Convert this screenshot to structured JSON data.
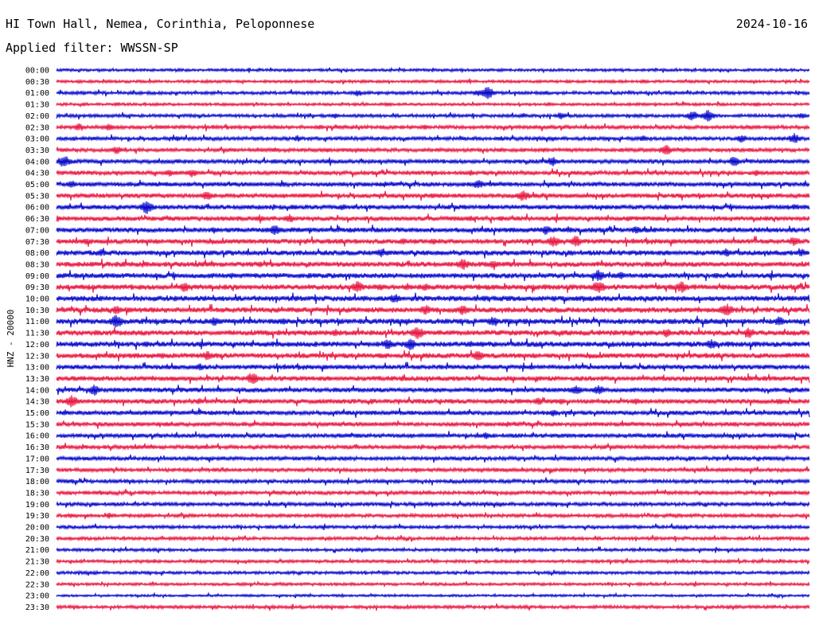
{
  "header": {
    "station": "HI Town Hall, Nemea, Corinthia, Peloponnese",
    "date": "2024-10-16",
    "filter_text": "Applied filter: WWSSN-SP"
  },
  "channel_label": "HNZ - 20000",
  "colors": {
    "trace_a": "#0000cc",
    "trace_b": "#e8103c",
    "text": "#000000",
    "background": "#ffffff"
  },
  "chart_data": {
    "type": "line",
    "title": "",
    "ylabel": "HNZ - 20000",
    "xlabel": "",
    "grid": false,
    "legend": "none",
    "lines": [
      {
        "label": "00:00",
        "color": "trace_a",
        "level": 0.3,
        "bursts": [
          [
            0.03,
            0.15
          ],
          [
            0.31,
            0.2
          ],
          [
            0.59,
            0.25
          ],
          [
            0.78,
            0.2
          ]
        ]
      },
      {
        "label": "00:30",
        "color": "trace_b",
        "level": 0.3,
        "bursts": [
          [
            0.03,
            0.3
          ],
          [
            0.2,
            0.25
          ],
          [
            0.51,
            0.25
          ],
          [
            0.68,
            0.3
          ],
          [
            0.74,
            0.25
          ],
          [
            0.78,
            0.35
          ]
        ]
      },
      {
        "label": "01:00",
        "color": "trace_a",
        "level": 0.4,
        "bursts": [
          [
            0.1,
            0.3
          ],
          [
            0.4,
            0.5
          ],
          [
            0.56,
            0.5
          ],
          [
            0.572,
            1.0
          ],
          [
            0.65,
            0.3
          ]
        ]
      },
      {
        "label": "01:30",
        "color": "trace_b",
        "level": 0.3,
        "bursts": [
          [
            0.08,
            0.35
          ],
          [
            0.44,
            0.4
          ],
          [
            0.93,
            0.35
          ]
        ]
      },
      {
        "label": "02:00",
        "color": "trace_a",
        "level": 0.4,
        "bursts": [
          [
            0.37,
            0.4
          ],
          [
            0.62,
            0.4
          ],
          [
            0.67,
            0.6
          ],
          [
            0.845,
            0.8
          ],
          [
            0.865,
            0.9
          ],
          [
            0.99,
            0.5
          ]
        ]
      },
      {
        "label": "02:30",
        "color": "trace_b",
        "level": 0.5,
        "bursts": [
          [
            0.03,
            0.6
          ],
          [
            0.07,
            0.6
          ],
          [
            0.14,
            0.35
          ],
          [
            0.35,
            0.4
          ],
          [
            0.49,
            0.4
          ]
        ]
      },
      {
        "label": "03:00",
        "color": "trace_a",
        "level": 0.5,
        "bursts": [
          [
            0.16,
            0.4
          ],
          [
            0.32,
            0.5
          ],
          [
            0.59,
            0.4
          ],
          [
            0.78,
            0.5
          ],
          [
            0.91,
            0.6
          ],
          [
            0.98,
            0.8
          ]
        ]
      },
      {
        "label": "03:30",
        "color": "trace_b",
        "level": 0.5,
        "bursts": [
          [
            0.08,
            0.65
          ],
          [
            0.29,
            0.4
          ],
          [
            0.36,
            0.4
          ],
          [
            0.59,
            0.4
          ],
          [
            0.81,
            0.8
          ]
        ]
      },
      {
        "label": "04:00",
        "color": "trace_a",
        "level": 0.6,
        "bursts": [
          [
            0.01,
            1.0
          ],
          [
            0.66,
            0.7
          ],
          [
            0.9,
            0.8
          ]
        ]
      },
      {
        "label": "04:30",
        "color": "trace_b",
        "level": 0.6,
        "bursts": [
          [
            0.15,
            0.55
          ],
          [
            0.18,
            0.7
          ],
          [
            0.55,
            0.45
          ],
          [
            0.93,
            0.45
          ]
        ]
      },
      {
        "label": "05:00",
        "color": "trace_a",
        "level": 0.65,
        "bursts": [
          [
            0.02,
            0.6
          ],
          [
            0.3,
            0.5
          ],
          [
            0.56,
            0.75
          ]
        ]
      },
      {
        "label": "05:30",
        "color": "trace_b",
        "level": 0.65,
        "bursts": [
          [
            0.2,
            0.75
          ],
          [
            0.5,
            0.45
          ],
          [
            0.62,
            0.9
          ]
        ]
      },
      {
        "label": "06:00",
        "color": "trace_a",
        "level": 0.7,
        "bursts": [
          [
            0.12,
            1.0
          ],
          [
            0.38,
            0.5
          ],
          [
            0.81,
            0.45
          ],
          [
            0.98,
            0.5
          ]
        ]
      },
      {
        "label": "06:30",
        "color": "trace_b",
        "level": 0.7,
        "bursts": [
          [
            0.0,
            0.6
          ],
          [
            0.27,
            0.6
          ],
          [
            0.31,
            0.7
          ],
          [
            0.55,
            0.45
          ],
          [
            0.76,
            0.45
          ]
        ]
      },
      {
        "label": "07:00",
        "color": "trace_a",
        "level": 0.75,
        "bursts": [
          [
            0.29,
            0.85
          ],
          [
            0.65,
            0.75
          ],
          [
            0.68,
            0.55
          ],
          [
            0.77,
            0.6
          ]
        ]
      },
      {
        "label": "07:30",
        "color": "trace_b",
        "level": 0.75,
        "bursts": [
          [
            0.04,
            0.5
          ],
          [
            0.46,
            0.55
          ],
          [
            0.5,
            0.5
          ],
          [
            0.66,
            0.9
          ],
          [
            0.69,
            0.9
          ],
          [
            0.98,
            0.8
          ]
        ]
      },
      {
        "label": "08:00",
        "color": "trace_a",
        "level": 0.8,
        "bursts": [
          [
            0.06,
            0.6
          ],
          [
            0.43,
            0.7
          ],
          [
            0.89,
            0.7
          ],
          [
            0.99,
            0.6
          ]
        ]
      },
      {
        "label": "08:30",
        "color": "trace_b",
        "level": 0.8,
        "bursts": [
          [
            0.27,
            0.45
          ],
          [
            0.54,
            0.9
          ],
          [
            0.58,
            0.6
          ]
        ]
      },
      {
        "label": "09:00",
        "color": "trace_a",
        "level": 0.8,
        "bursts": [
          [
            0.72,
            0.9
          ],
          [
            0.75,
            0.6
          ]
        ]
      },
      {
        "label": "09:30",
        "color": "trace_b",
        "level": 0.85,
        "bursts": [
          [
            0.17,
            0.8
          ],
          [
            0.4,
            0.9
          ],
          [
            0.43,
            0.6
          ],
          [
            0.49,
            0.6
          ],
          [
            0.72,
            1.0
          ],
          [
            0.83,
            0.9
          ]
        ]
      },
      {
        "label": "10:00",
        "color": "trace_a",
        "level": 0.85,
        "bursts": [
          [
            0.45,
            0.8
          ],
          [
            0.6,
            0.45
          ],
          [
            0.72,
            0.5
          ]
        ]
      },
      {
        "label": "10:30",
        "color": "trace_b",
        "level": 0.85,
        "bursts": [
          [
            0.08,
            0.7
          ],
          [
            0.49,
            0.8
          ],
          [
            0.54,
            0.85
          ],
          [
            0.89,
            1.0
          ]
        ]
      },
      {
        "label": "11:00",
        "color": "trace_a",
        "level": 0.85,
        "bursts": [
          [
            0.08,
            1.0
          ],
          [
            0.21,
            0.7
          ],
          [
            0.3,
            0.6
          ],
          [
            0.58,
            0.8
          ],
          [
            0.96,
            0.75
          ]
        ]
      },
      {
        "label": "11:30",
        "color": "trace_b",
        "level": 0.85,
        "bursts": [
          [
            0.37,
            0.6
          ],
          [
            0.48,
            1.0
          ],
          [
            0.81,
            0.7
          ],
          [
            0.92,
            0.8
          ]
        ]
      },
      {
        "label": "12:00",
        "color": "trace_a",
        "level": 0.85,
        "bursts": [
          [
            0.44,
            0.8
          ],
          [
            0.47,
            0.9
          ],
          [
            0.55,
            0.55
          ],
          [
            0.87,
            0.8
          ]
        ]
      },
      {
        "label": "12:30",
        "color": "trace_b",
        "level": 0.8,
        "bursts": [
          [
            0.14,
            0.5
          ],
          [
            0.2,
            0.75
          ],
          [
            0.43,
            0.5
          ],
          [
            0.56,
            0.8
          ]
        ]
      },
      {
        "label": "13:00",
        "color": "trace_a",
        "level": 0.7,
        "bursts": [
          [
            0.19,
            0.6
          ],
          [
            0.63,
            0.4
          ]
        ]
      },
      {
        "label": "13:30",
        "color": "trace_b",
        "level": 0.75,
        "bursts": [
          [
            0.26,
            0.9
          ],
          [
            0.46,
            0.45
          ]
        ]
      },
      {
        "label": "14:00",
        "color": "trace_a",
        "level": 0.7,
        "bursts": [
          [
            0.05,
            0.85
          ],
          [
            0.69,
            0.8
          ],
          [
            0.72,
            0.8
          ],
          [
            0.84,
            0.45
          ]
        ]
      },
      {
        "label": "14:30",
        "color": "trace_b",
        "level": 0.7,
        "bursts": [
          [
            0.02,
            0.95
          ],
          [
            0.19,
            0.5
          ],
          [
            0.64,
            0.6
          ],
          [
            0.67,
            0.5
          ],
          [
            0.77,
            0.5
          ],
          [
            0.96,
            0.5
          ]
        ]
      },
      {
        "label": "15:00",
        "color": "trace_a",
        "level": 0.65,
        "bursts": [
          [
            0.66,
            0.6
          ],
          [
            0.47,
            0.4
          ]
        ]
      },
      {
        "label": "15:30",
        "color": "trace_b",
        "level": 0.6,
        "bursts": [
          [
            0.9,
            0.35
          ]
        ]
      },
      {
        "label": "16:00",
        "color": "trace_a",
        "level": 0.6,
        "bursts": [
          [
            0.4,
            0.4
          ],
          [
            0.57,
            0.55
          ]
        ]
      },
      {
        "label": "16:30",
        "color": "trace_b",
        "level": 0.55,
        "bursts": []
      },
      {
        "label": "17:00",
        "color": "trace_a",
        "level": 0.55,
        "bursts": [
          [
            0.35,
            0.35
          ]
        ]
      },
      {
        "label": "17:30",
        "color": "trace_b",
        "level": 0.5,
        "bursts": []
      },
      {
        "label": "18:00",
        "color": "trace_a",
        "level": 0.5,
        "bursts": [
          [
            0.02,
            0.35
          ],
          [
            0.6,
            0.3
          ]
        ]
      },
      {
        "label": "18:30",
        "color": "trace_b",
        "level": 0.5,
        "bursts": [
          [
            0.04,
            0.35
          ],
          [
            0.42,
            0.3
          ],
          [
            0.97,
            0.35
          ]
        ]
      },
      {
        "label": "19:00",
        "color": "trace_a",
        "level": 0.5,
        "bursts": [
          [
            0.4,
            0.3
          ]
        ]
      },
      {
        "label": "19:30",
        "color": "trace_b",
        "level": 0.45,
        "bursts": [
          [
            0.02,
            0.4
          ],
          [
            0.07,
            0.45
          ],
          [
            0.12,
            0.35
          ],
          [
            0.95,
            0.35
          ]
        ]
      },
      {
        "label": "20:00",
        "color": "trace_a",
        "level": 0.4,
        "bursts": [
          [
            0.6,
            0.25
          ]
        ]
      },
      {
        "label": "20:30",
        "color": "trace_b",
        "level": 0.4,
        "bursts": []
      },
      {
        "label": "21:00",
        "color": "trace_a",
        "level": 0.35,
        "bursts": [
          [
            0.6,
            0.25
          ]
        ]
      },
      {
        "label": "21:30",
        "color": "trace_b",
        "level": 0.35,
        "bursts": [
          [
            0.13,
            0.25
          ]
        ]
      },
      {
        "label": "22:00",
        "color": "trace_a",
        "level": 0.35,
        "bursts": []
      },
      {
        "label": "22:30",
        "color": "trace_b",
        "level": 0.3,
        "bursts": [
          [
            0.25,
            0.25
          ]
        ]
      },
      {
        "label": "23:00",
        "color": "trace_a",
        "level": 0.2,
        "bursts": [
          [
            0.38,
            0.25
          ]
        ]
      },
      {
        "label": "23:30",
        "color": "trace_b",
        "level": 0.4,
        "bursts": []
      }
    ]
  }
}
